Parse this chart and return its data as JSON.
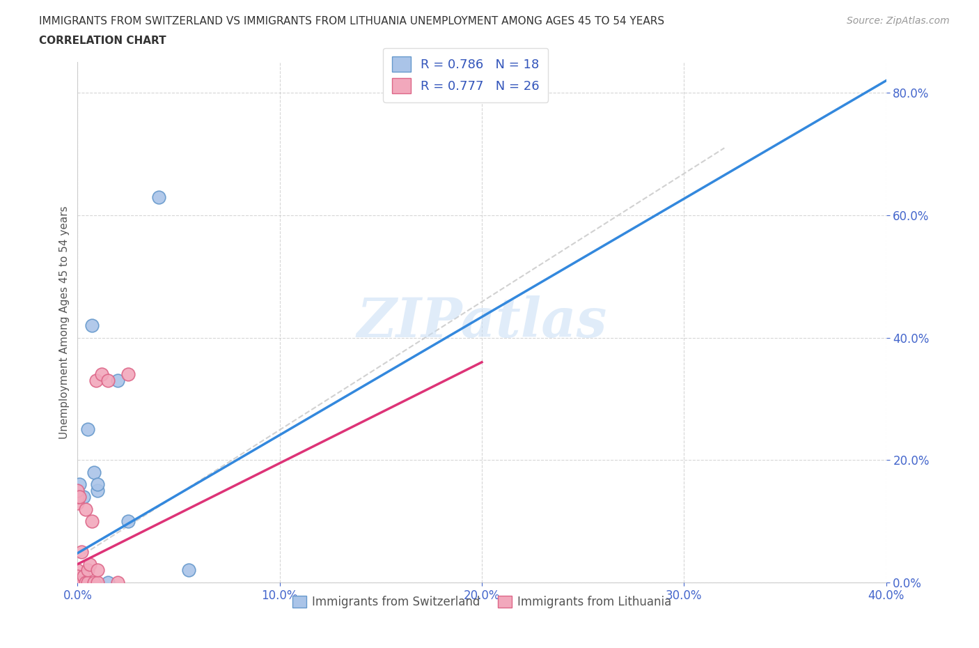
{
  "title_line1": "IMMIGRANTS FROM SWITZERLAND VS IMMIGRANTS FROM LITHUANIA UNEMPLOYMENT AMONG AGES 45 TO 54 YEARS",
  "title_line2": "CORRELATION CHART",
  "source": "Source: ZipAtlas.com",
  "ylabel": "Unemployment Among Ages 45 to 54 years",
  "xlim": [
    0.0,
    0.4
  ],
  "ylim": [
    0.0,
    0.85
  ],
  "xticks": [
    0.0,
    0.1,
    0.2,
    0.3,
    0.4
  ],
  "yticks": [
    0.0,
    0.2,
    0.4,
    0.6,
    0.8
  ],
  "switzerland_color": "#aac4e8",
  "lithuania_color": "#f2a8bc",
  "switzerland_edge": "#6699cc",
  "lithuania_edge": "#dd6688",
  "trend_line_switzerland": "#3388dd",
  "trend_line_lithuania": "#dd3377",
  "trend_line_dashed": "#cccccc",
  "R_switzerland": 0.786,
  "N_switzerland": 18,
  "R_lithuania": 0.777,
  "N_lithuania": 26,
  "watermark": "ZIPatlas",
  "legend_label_switzerland": "Immigrants from Switzerland",
  "legend_label_lithuania": "Immigrants from Lithuania",
  "switzerland_x": [
    0.0,
    0.0,
    0.0,
    0.0,
    0.001,
    0.001,
    0.002,
    0.003,
    0.005,
    0.007,
    0.008,
    0.01,
    0.01,
    0.015,
    0.02,
    0.025,
    0.04,
    0.055
  ],
  "switzerland_y": [
    0.0,
    0.005,
    0.01,
    0.14,
    0.0,
    0.16,
    0.0,
    0.14,
    0.25,
    0.42,
    0.18,
    0.15,
    0.16,
    0.0,
    0.33,
    0.1,
    0.63,
    0.02
  ],
  "lithuania_x": [
    0.0,
    0.0,
    0.0,
    0.0,
    0.0,
    0.0,
    0.0,
    0.001,
    0.001,
    0.002,
    0.002,
    0.003,
    0.004,
    0.004,
    0.005,
    0.005,
    0.006,
    0.007,
    0.008,
    0.009,
    0.01,
    0.01,
    0.012,
    0.015,
    0.02,
    0.025
  ],
  "lithuania_y": [
    0.0,
    0.0,
    0.13,
    0.14,
    0.15,
    0.02,
    0.01,
    0.0,
    0.14,
    0.0,
    0.05,
    0.01,
    0.0,
    0.12,
    0.0,
    0.02,
    0.03,
    0.1,
    0.0,
    0.33,
    0.0,
    0.02,
    0.34,
    0.33,
    0.0,
    0.34
  ],
  "background_color": "#ffffff",
  "grid_color": "#cccccc",
  "swiss_trend_x": [
    0.0,
    0.4
  ],
  "swiss_trend_y": [
    0.048,
    0.82
  ],
  "lith_trend_x": [
    0.0,
    0.2
  ],
  "lith_trend_y": [
    0.03,
    0.36
  ]
}
